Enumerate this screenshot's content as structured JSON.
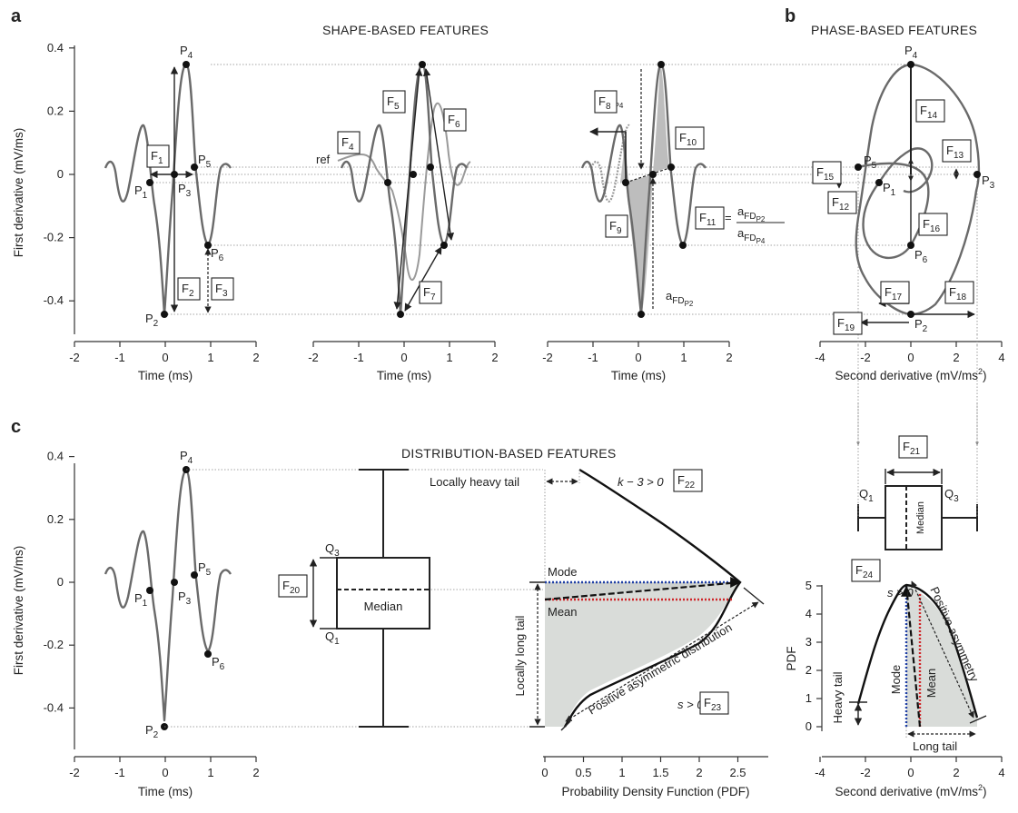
{
  "panels": {
    "a": "a",
    "b": "b",
    "c": "c"
  },
  "sections": {
    "shape": "SHAPE-BASED FEATURES",
    "phase": "PHASE-BASED FEATURES",
    "distribution": "DISTRIBUTION-BASED FEATURES"
  },
  "axes": {
    "ylabel_first_derivative": "First derivative (mV/ms)",
    "xlabel_time": "Time (ms)",
    "xlabel_second_derivative": "Second derivative (mV/ms",
    "xlabel_second_derivative_sup": "2",
    "xlabel_second_derivative_end": ")",
    "xlabel_pdf": "Probability Density Function (PDF)",
    "ylabel_pdf": "PDF",
    "yticks_fd": [
      "0.4",
      "0.2",
      "0",
      "-0.2",
      "-0.4"
    ],
    "xticks_time": [
      "-2",
      "-1",
      "0",
      "1",
      "2"
    ],
    "xticks_second": [
      "-4",
      "-2",
      "0",
      "2",
      "4"
    ],
    "xticks_pdf": [
      "0",
      "0.5",
      "1",
      "1.5",
      "2",
      "2.5"
    ],
    "yticks_pdf": [
      "5",
      "4",
      "3",
      "2",
      "1",
      "0"
    ]
  },
  "points": [
    "P",
    "1",
    "2",
    "3",
    "4",
    "5",
    "6"
  ],
  "features": [
    "F",
    "1",
    "2",
    "3",
    "4",
    "5",
    "6",
    "7",
    "8",
    "9",
    "10",
    "11",
    "12",
    "13",
    "14",
    "15",
    "16",
    "17",
    "18",
    "19",
    "20",
    "21",
    "22",
    "23",
    "24"
  ],
  "annotations": {
    "ref": "ref",
    "a": "a",
    "fd_sub": "FD",
    "p2": "P2",
    "p4": "P4",
    "equals": "=",
    "median": "Median",
    "q": "Q",
    "mode": "Mode",
    "mean": "Mean",
    "locally_heavy_tail": "Locally heavy tail",
    "k_condition": "k − 3 > 0",
    "locally_long_tail": "Locally long tail",
    "positive_asym_dist": "Positive asymmetric distribution",
    "s_condition": "s > 0",
    "positive_asymmetry": "Positive asymmetry",
    "heavy_tail": "Heavy tail",
    "long_tail": "Long tail"
  },
  "chart_data": [
    {
      "type": "line",
      "panel": "a (left)",
      "xlabel": "Time (ms)",
      "ylabel": "First derivative (mV/ms)",
      "xlim": [
        -2,
        2
      ],
      "ylim": [
        -0.5,
        0.4
      ],
      "x": [
        -1.28,
        -1.15,
        -1.02,
        -0.85,
        -0.6,
        -0.42,
        -0.3,
        -0.2,
        -0.07,
        0.05,
        0.2,
        0.3,
        0.43,
        0.56,
        0.65,
        0.78,
        0.94,
        1.05,
        1.15,
        1.25,
        1.36
      ],
      "values": [
        0.02,
        0.05,
        -0.08,
        0.02,
        0.17,
        -0.05,
        -0.14,
        -0.35,
        -0.43,
        -0.2,
        0.05,
        0.28,
        0.35,
        0.15,
        0.02,
        -0.14,
        -0.22,
        -0.12,
        0.04,
        0.06,
        0.03
      ],
      "key_points": {
        "P1": [
          -0.3,
          -0.025
        ],
        "P2": [
          0.0,
          -0.435
        ],
        "P3": [
          0.2,
          0.0
        ],
        "P4": [
          0.43,
          0.345
        ],
        "P5": [
          0.63,
          0.025
        ],
        "P6": [
          0.94,
          -0.225
        ]
      }
    },
    {
      "type": "line",
      "panel": "b",
      "xlabel": "Second derivative (mV/ms2)",
      "ylabel": "First derivative (mV/ms)",
      "xlim": [
        -4,
        4
      ],
      "ylim": [
        -0.5,
        0.4
      ],
      "key_points": {
        "P1": [
          -1.5,
          -0.025
        ],
        "P2": [
          0.0,
          -0.435
        ],
        "P3": [
          3.0,
          0.0
        ],
        "P4": [
          0.0,
          0.345
        ],
        "P5": [
          -2.4,
          0.025
        ],
        "P6": [
          0.0,
          -0.225
        ]
      }
    },
    {
      "type": "area",
      "panel": "c (PDF of first derivative)",
      "xlabel": "Probability Density Function (PDF)",
      "xlim": [
        0,
        2.5
      ],
      "ylim": [
        -0.5,
        0.4
      ],
      "x": [
        0.3,
        0.75,
        1.2,
        1.6,
        1.95,
        2.1,
        1.95,
        1.4,
        0.9,
        0.6,
        0.4,
        0.25
      ],
      "values": [
        0.355,
        0.3,
        0.23,
        0.14,
        0.04,
        0.0,
        -0.15,
        -0.24,
        -0.3,
        -0.36,
        -0.42,
        -0.45
      ]
    },
    {
      "type": "area",
      "panel": "c (PDF of second derivative)",
      "xlabel": "Second derivative (mV/ms2)",
      "ylabel": "PDF",
      "xlim": [
        -4,
        4
      ],
      "ylim": [
        0,
        5
      ],
      "x": [
        -2.4,
        -2.0,
        -1.5,
        -1.0,
        -0.5,
        0.0,
        0.5,
        1.0,
        1.5,
        2.0,
        2.5,
        3.0
      ],
      "values": [
        0.8,
        2.0,
        3.2,
        4.2,
        4.8,
        5.0,
        4.8,
        4.3,
        3.4,
        2.3,
        1.2,
        0.4
      ]
    }
  ]
}
